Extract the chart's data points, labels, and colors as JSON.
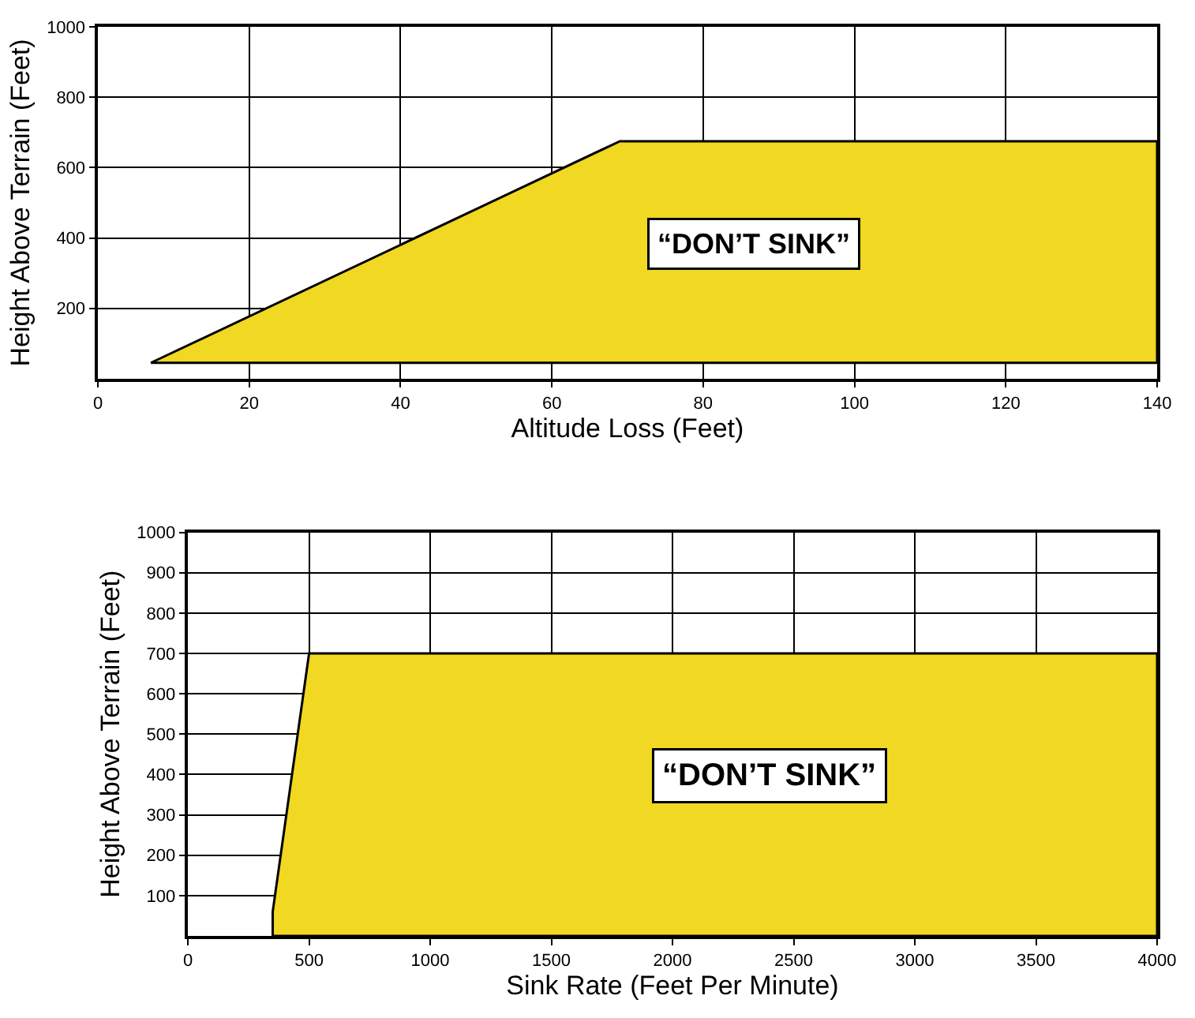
{
  "chart_data": [
    {
      "type": "area",
      "xlabel": "Altitude Loss (Feet)",
      "ylabel": "Height Above Terrain (Feet)",
      "xlim": [
        0,
        140
      ],
      "ylim": [
        0,
        1000
      ],
      "xticks": [
        0,
        20,
        40,
        60,
        80,
        100,
        120,
        140
      ],
      "yticks": [
        200,
        400,
        600,
        800,
        1000
      ],
      "grid": true,
      "series": [
        {
          "color": "#f0d823",
          "x": [
            7,
            69,
            140,
            140,
            7
          ],
          "values": [
            45,
            675,
            675,
            45,
            45
          ]
        }
      ],
      "annotations": [
        "“DON’T SINK”"
      ]
    },
    {
      "type": "area",
      "xlabel": "Sink Rate (Feet Per Minute)",
      "ylabel": "Height Above Terrain (Feet)",
      "xlim": [
        0,
        4000
      ],
      "ylim": [
        0,
        1000
      ],
      "xticks": [
        0,
        500,
        1000,
        1500,
        2000,
        2500,
        3000,
        3500,
        4000
      ],
      "yticks": [
        100,
        200,
        300,
        400,
        500,
        600,
        700,
        800,
        900,
        1000
      ],
      "grid": true,
      "series": [
        {
          "color": "#f0d823",
          "x": [
            350,
            350,
            500,
            4000,
            4000,
            350
          ],
          "values": [
            0,
            60,
            700,
            700,
            0,
            0
          ]
        }
      ],
      "annotations": [
        "“DON’T SINK”"
      ]
    }
  ]
}
